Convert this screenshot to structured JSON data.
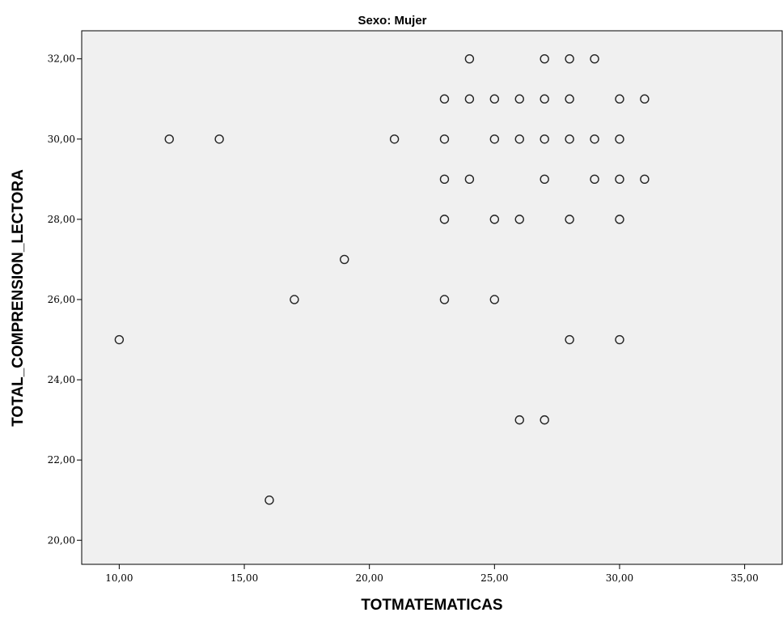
{
  "chart_data": {
    "type": "scatter",
    "title": "Sexo: Mujer",
    "xlabel": "TOTMATEMATICAS",
    "ylabel": "TOTAL_COMPRENSION_LECTORA",
    "xlim": [
      8.5,
      36.5
    ],
    "ylim": [
      19.4,
      32.7
    ],
    "xticks": [
      10,
      15,
      20,
      25,
      30,
      35
    ],
    "yticks": [
      20,
      22,
      24,
      26,
      28,
      30,
      32
    ],
    "xtick_labels": [
      "10,00",
      "15,00",
      "20,00",
      "25,00",
      "30,00",
      "35,00"
    ],
    "ytick_labels": [
      "20,00",
      "22,00",
      "24,00",
      "26,00",
      "28,00",
      "30,00",
      "32,00"
    ],
    "grid": false,
    "marker": "open-circle",
    "points": [
      {
        "x": 24,
        "y": 32
      },
      {
        "x": 27,
        "y": 32
      },
      {
        "x": 28,
        "y": 32
      },
      {
        "x": 29,
        "y": 32
      },
      {
        "x": 23,
        "y": 31
      },
      {
        "x": 24,
        "y": 31
      },
      {
        "x": 25,
        "y": 31
      },
      {
        "x": 26,
        "y": 31
      },
      {
        "x": 27,
        "y": 31
      },
      {
        "x": 28,
        "y": 31
      },
      {
        "x": 30,
        "y": 31
      },
      {
        "x": 31,
        "y": 31
      },
      {
        "x": 12,
        "y": 30
      },
      {
        "x": 14,
        "y": 30
      },
      {
        "x": 21,
        "y": 30
      },
      {
        "x": 23,
        "y": 30
      },
      {
        "x": 25,
        "y": 30
      },
      {
        "x": 26,
        "y": 30
      },
      {
        "x": 27,
        "y": 30
      },
      {
        "x": 28,
        "y": 30
      },
      {
        "x": 29,
        "y": 30
      },
      {
        "x": 30,
        "y": 30
      },
      {
        "x": 23,
        "y": 29
      },
      {
        "x": 24,
        "y": 29
      },
      {
        "x": 27,
        "y": 29
      },
      {
        "x": 29,
        "y": 29
      },
      {
        "x": 30,
        "y": 29
      },
      {
        "x": 31,
        "y": 29
      },
      {
        "x": 23,
        "y": 28
      },
      {
        "x": 25,
        "y": 28
      },
      {
        "x": 26,
        "y": 28
      },
      {
        "x": 28,
        "y": 28
      },
      {
        "x": 30,
        "y": 28
      },
      {
        "x": 19,
        "y": 27
      },
      {
        "x": 17,
        "y": 26
      },
      {
        "x": 23,
        "y": 26
      },
      {
        "x": 25,
        "y": 26
      },
      {
        "x": 10,
        "y": 25
      },
      {
        "x": 28,
        "y": 25
      },
      {
        "x": 30,
        "y": 25
      },
      {
        "x": 26,
        "y": 23
      },
      {
        "x": 27,
        "y": 23
      },
      {
        "x": 16,
        "y": 21
      }
    ]
  }
}
